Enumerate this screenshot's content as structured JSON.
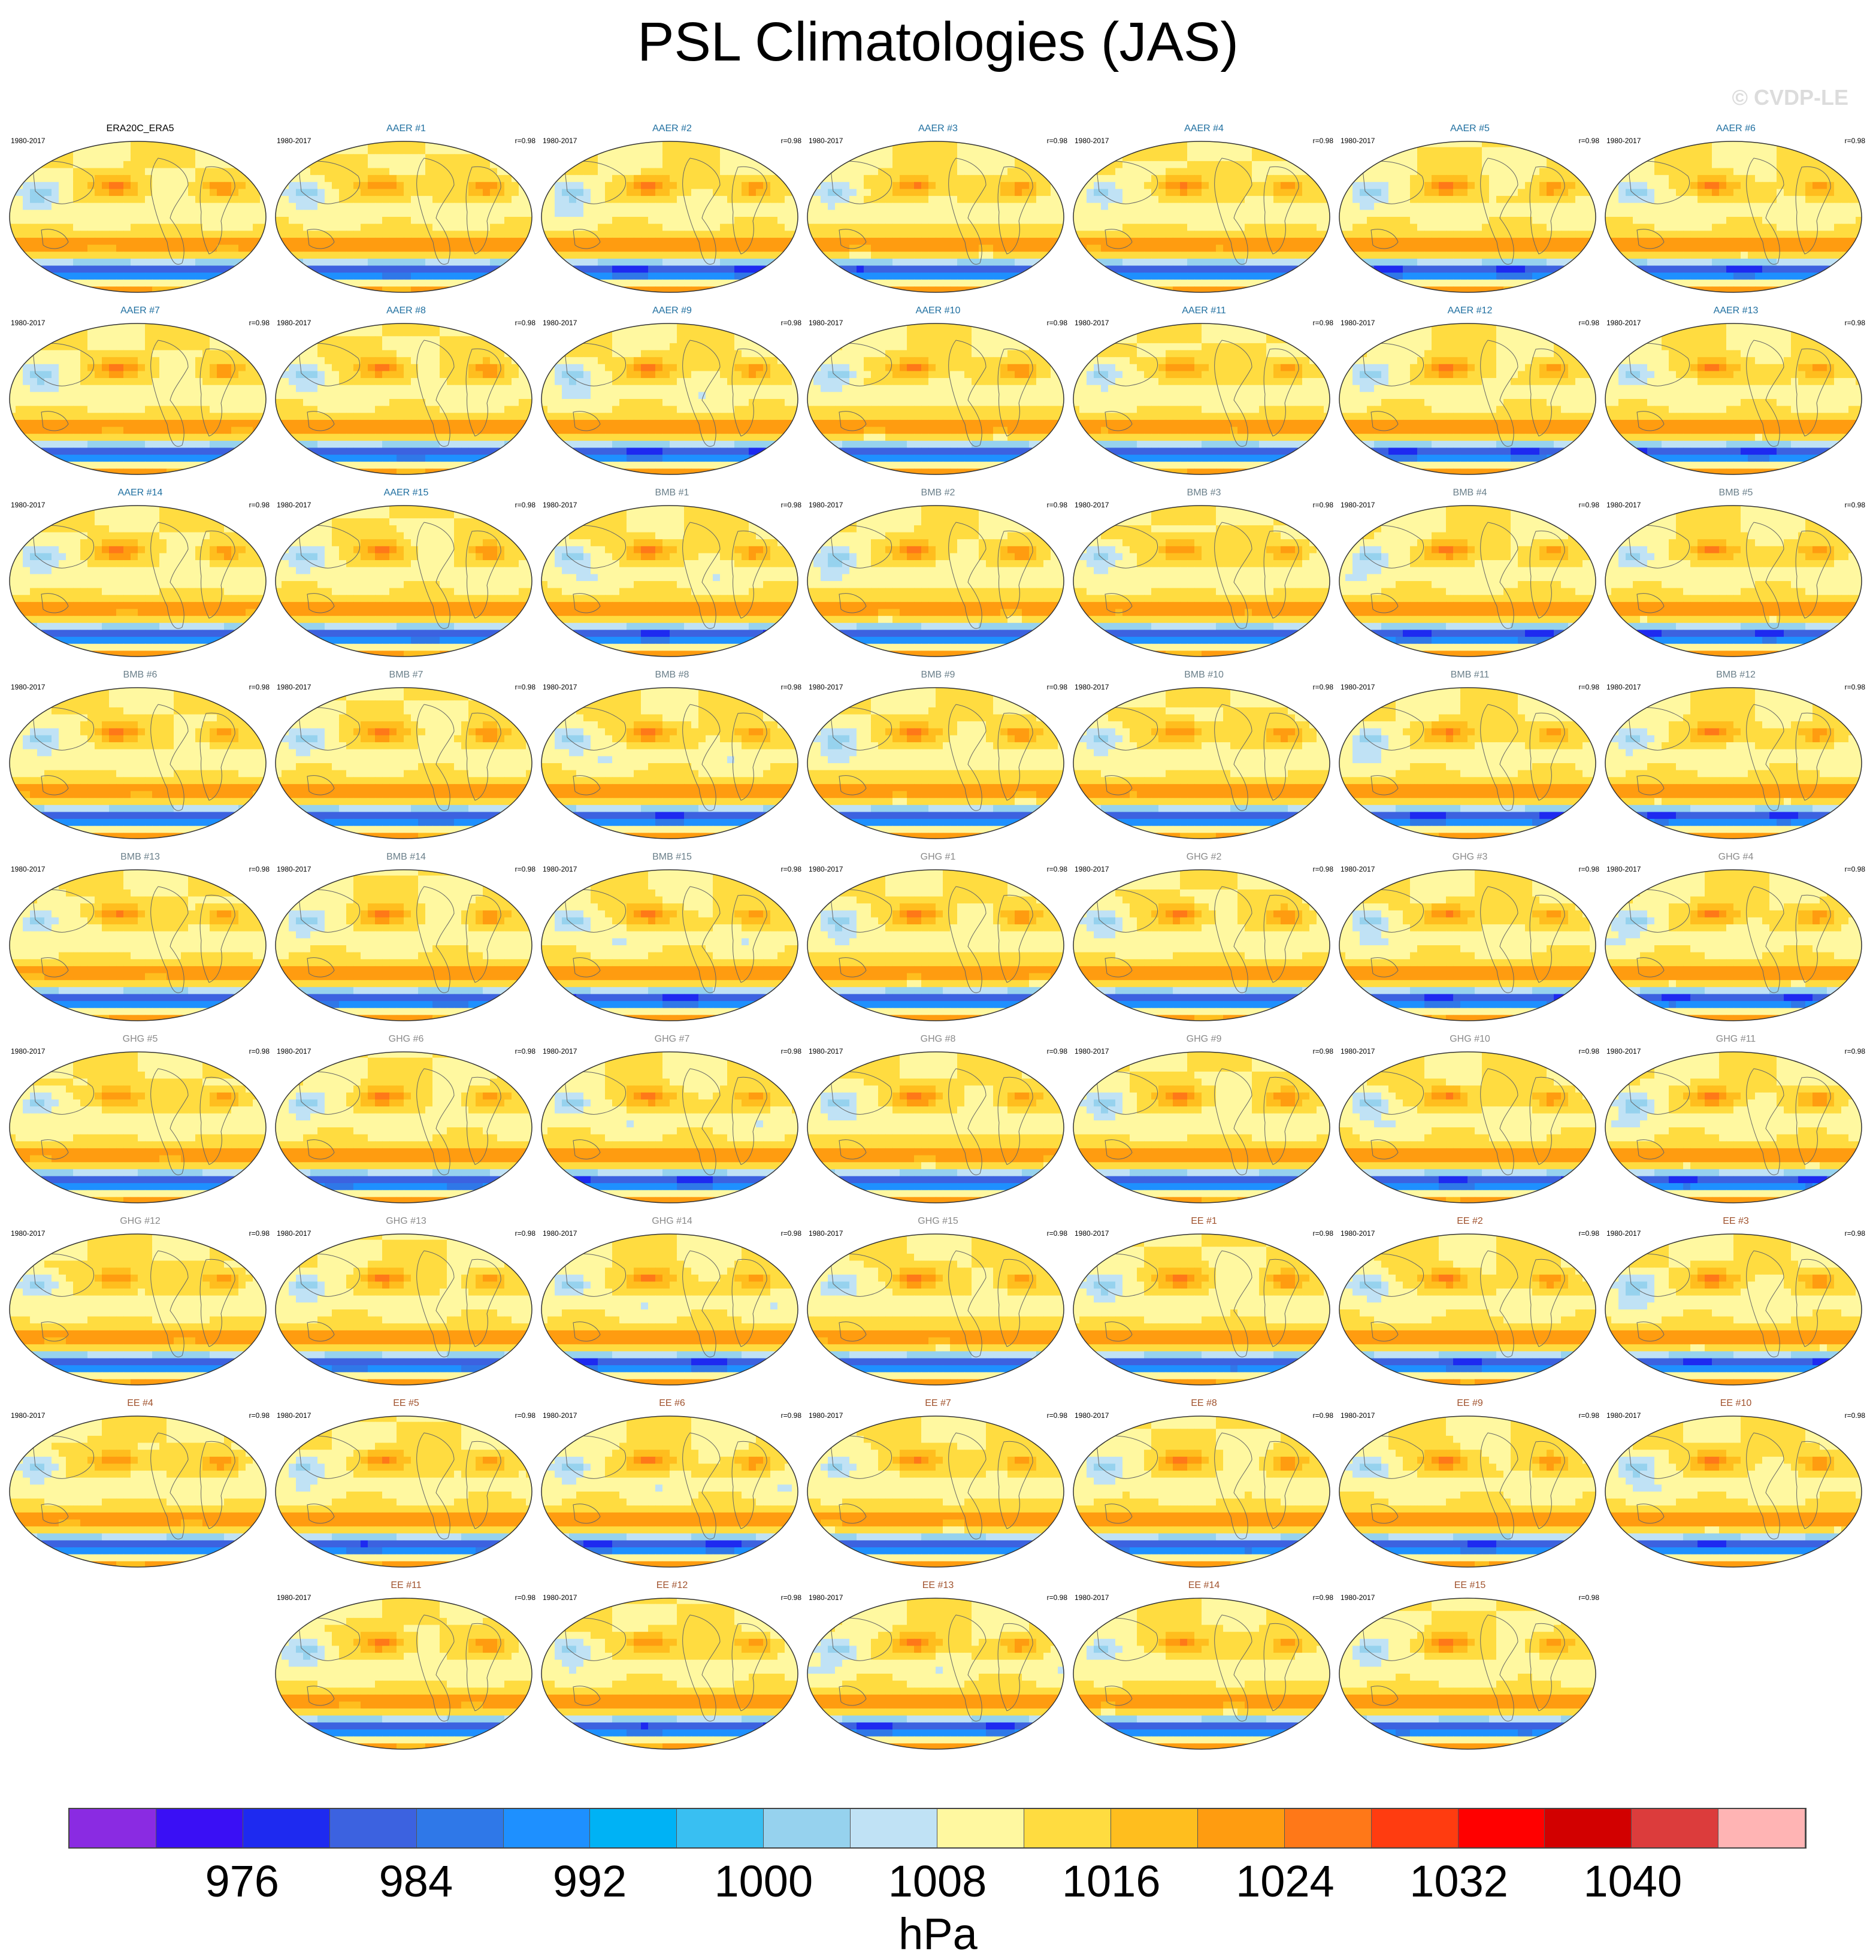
{
  "title": "PSL Climatologies (JAS)",
  "copyright": "© CVDP-LE",
  "chart_data": {
    "type": "heatmap",
    "projection": "robinson",
    "variable": "PSL",
    "season": "JAS",
    "units": "hPa",
    "colorbar": {
      "levels": [
        972,
        976,
        980,
        984,
        988,
        992,
        996,
        1000,
        1004,
        1008,
        1012,
        1016,
        1020,
        1024,
        1028,
        1032,
        1036,
        1040,
        1044
      ],
      "tick_labels": [
        "976",
        "984",
        "992",
        "1000",
        "1008",
        "1016",
        "1024",
        "1032",
        "1040"
      ],
      "tick_values": [
        976,
        984,
        992,
        1000,
        1008,
        1016,
        1024,
        1032,
        1040
      ],
      "colors": [
        "#8a2be2",
        "#3a0ff5",
        "#1e2af0",
        "#3c62e0",
        "#2f78e8",
        "#1e90ff",
        "#00b2f5",
        "#39bff2",
        "#96d2ee",
        "#c0e2f5",
        "#fff8a0",
        "#ffdc40",
        "#ffbe1e",
        "#ff9c10",
        "#ff7818",
        "#ff3c10",
        "#ff0000",
        "#d20000",
        "#dc3c3c",
        "#ffb4b4"
      ]
    },
    "panels": [
      {
        "title": "ERA20C_ERA5",
        "group": "obs",
        "period": "1980-2017",
        "r": ""
      },
      {
        "title": "AAER #1",
        "group": "AAER",
        "period": "1980-2017",
        "r": "r=0.98"
      },
      {
        "title": "AAER #2",
        "group": "AAER",
        "period": "1980-2017",
        "r": "r=0.98"
      },
      {
        "title": "AAER #3",
        "group": "AAER",
        "period": "1980-2017",
        "r": "r=0.98"
      },
      {
        "title": "AAER #4",
        "group": "AAER",
        "period": "1980-2017",
        "r": "r=0.98"
      },
      {
        "title": "AAER #5",
        "group": "AAER",
        "period": "1980-2017",
        "r": "r=0.98"
      },
      {
        "title": "AAER #6",
        "group": "AAER",
        "period": "1980-2017",
        "r": "r=0.98"
      },
      {
        "title": "AAER #7",
        "group": "AAER",
        "period": "1980-2017",
        "r": "r=0.98"
      },
      {
        "title": "AAER #8",
        "group": "AAER",
        "period": "1980-2017",
        "r": "r=0.98"
      },
      {
        "title": "AAER #9",
        "group": "AAER",
        "period": "1980-2017",
        "r": "r=0.98"
      },
      {
        "title": "AAER #10",
        "group": "AAER",
        "period": "1980-2017",
        "r": "r=0.98"
      },
      {
        "title": "AAER #11",
        "group": "AAER",
        "period": "1980-2017",
        "r": "r=0.98"
      },
      {
        "title": "AAER #12",
        "group": "AAER",
        "period": "1980-2017",
        "r": "r=0.98"
      },
      {
        "title": "AAER #13",
        "group": "AAER",
        "period": "1980-2017",
        "r": "r=0.98"
      },
      {
        "title": "AAER #14",
        "group": "AAER",
        "period": "1980-2017",
        "r": "r=0.98"
      },
      {
        "title": "AAER #15",
        "group": "AAER",
        "period": "1980-2017",
        "r": "r=0.98"
      },
      {
        "title": "BMB #1",
        "group": "BMB",
        "period": "1980-2017",
        "r": "r=0.98"
      },
      {
        "title": "BMB #2",
        "group": "BMB",
        "period": "1980-2017",
        "r": "r=0.98"
      },
      {
        "title": "BMB #3",
        "group": "BMB",
        "period": "1980-2017",
        "r": "r=0.98"
      },
      {
        "title": "BMB #4",
        "group": "BMB",
        "period": "1980-2017",
        "r": "r=0.98"
      },
      {
        "title": "BMB #5",
        "group": "BMB",
        "period": "1980-2017",
        "r": "r=0.98"
      },
      {
        "title": "BMB #6",
        "group": "BMB",
        "period": "1980-2017",
        "r": "r=0.98"
      },
      {
        "title": "BMB #7",
        "group": "BMB",
        "period": "1980-2017",
        "r": "r=0.98"
      },
      {
        "title": "BMB #8",
        "group": "BMB",
        "period": "1980-2017",
        "r": "r=0.98"
      },
      {
        "title": "BMB #9",
        "group": "BMB",
        "period": "1980-2017",
        "r": "r=0.98"
      },
      {
        "title": "BMB #10",
        "group": "BMB",
        "period": "1980-2017",
        "r": "r=0.98"
      },
      {
        "title": "BMB #11",
        "group": "BMB",
        "period": "1980-2017",
        "r": "r=0.98"
      },
      {
        "title": "BMB #12",
        "group": "BMB",
        "period": "1980-2017",
        "r": "r=0.98"
      },
      {
        "title": "BMB #13",
        "group": "BMB",
        "period": "1980-2017",
        "r": "r=0.98"
      },
      {
        "title": "BMB #14",
        "group": "BMB",
        "period": "1980-2017",
        "r": "r=0.98"
      },
      {
        "title": "BMB #15",
        "group": "BMB",
        "period": "1980-2017",
        "r": "r=0.98"
      },
      {
        "title": "GHG #1",
        "group": "GHG",
        "period": "1980-2017",
        "r": "r=0.98"
      },
      {
        "title": "GHG #2",
        "group": "GHG",
        "period": "1980-2017",
        "r": "r=0.98"
      },
      {
        "title": "GHG #3",
        "group": "GHG",
        "period": "1980-2017",
        "r": "r=0.98"
      },
      {
        "title": "GHG #4",
        "group": "GHG",
        "period": "1980-2017",
        "r": "r=0.98"
      },
      {
        "title": "GHG #5",
        "group": "GHG",
        "period": "1980-2017",
        "r": "r=0.98"
      },
      {
        "title": "GHG #6",
        "group": "GHG",
        "period": "1980-2017",
        "r": "r=0.98"
      },
      {
        "title": "GHG #7",
        "group": "GHG",
        "period": "1980-2017",
        "r": "r=0.98"
      },
      {
        "title": "GHG #8",
        "group": "GHG",
        "period": "1980-2017",
        "r": "r=0.98"
      },
      {
        "title": "GHG #9",
        "group": "GHG",
        "period": "1980-2017",
        "r": "r=0.98"
      },
      {
        "title": "GHG #10",
        "group": "GHG",
        "period": "1980-2017",
        "r": "r=0.98"
      },
      {
        "title": "GHG #11",
        "group": "GHG",
        "period": "1980-2017",
        "r": "r=0.98"
      },
      {
        "title": "GHG #12",
        "group": "GHG",
        "period": "1980-2017",
        "r": "r=0.98"
      },
      {
        "title": "GHG #13",
        "group": "GHG",
        "period": "1980-2017",
        "r": "r=0.98"
      },
      {
        "title": "GHG #14",
        "group": "GHG",
        "period": "1980-2017",
        "r": "r=0.98"
      },
      {
        "title": "GHG #15",
        "group": "GHG",
        "period": "1980-2017",
        "r": "r=0.98"
      },
      {
        "title": "EE #1",
        "group": "EE",
        "period": "1980-2017",
        "r": "r=0.98"
      },
      {
        "title": "EE #2",
        "group": "EE",
        "period": "1980-2017",
        "r": "r=0.98"
      },
      {
        "title": "EE #3",
        "group": "EE",
        "period": "1980-2017",
        "r": "r=0.98"
      },
      {
        "title": "EE #4",
        "group": "EE",
        "period": "1980-2017",
        "r": "r=0.98"
      },
      {
        "title": "EE #5",
        "group": "EE",
        "period": "1980-2017",
        "r": "r=0.98"
      },
      {
        "title": "EE #6",
        "group": "EE",
        "period": "1980-2017",
        "r": "r=0.98"
      },
      {
        "title": "EE #7",
        "group": "EE",
        "period": "1980-2017",
        "r": "r=0.98"
      },
      {
        "title": "EE #8",
        "group": "EE",
        "period": "1980-2017",
        "r": "r=0.98"
      },
      {
        "title": "EE #9",
        "group": "EE",
        "period": "1980-2017",
        "r": "r=0.98"
      },
      {
        "title": "EE #10",
        "group": "EE",
        "period": "1980-2017",
        "r": "r=0.98"
      },
      {
        "title": "EE #11",
        "group": "EE",
        "period": "1980-2017",
        "r": "r=0.98"
      },
      {
        "title": "EE #12",
        "group": "EE",
        "period": "1980-2017",
        "r": "r=0.98"
      },
      {
        "title": "EE #13",
        "group": "EE",
        "period": "1980-2017",
        "r": "r=0.98"
      },
      {
        "title": "EE #14",
        "group": "EE",
        "period": "1980-2017",
        "r": "r=0.98"
      },
      {
        "title": "EE #15",
        "group": "EE",
        "period": "1980-2017",
        "r": "r=0.98"
      }
    ]
  },
  "group_title_colors": {
    "obs": "#000000",
    "AAER": "#1f6fa0",
    "BMB": "#6a7f8a",
    "GHG": "#8a8a8a",
    "EE": "#a0522d"
  }
}
